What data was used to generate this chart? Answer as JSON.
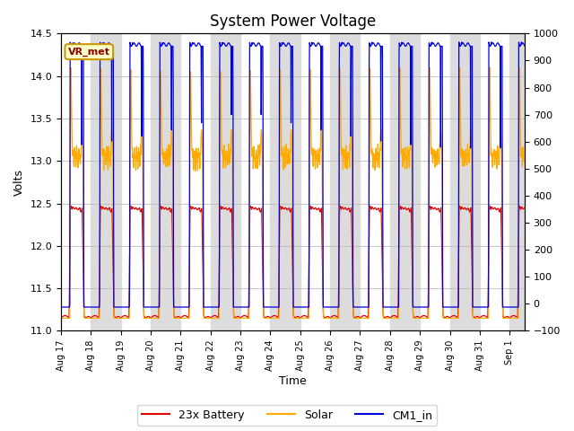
{
  "title": "System Power Voltage",
  "ylabel_left": "Volts",
  "xlabel": "Time",
  "ylim_left": [
    11.0,
    14.5
  ],
  "ylim_right": [
    -100,
    1000
  ],
  "yticks_left": [
    11.0,
    11.5,
    12.0,
    12.5,
    13.0,
    13.5,
    14.0,
    14.5
  ],
  "yticks_right": [
    -100,
    0,
    100,
    200,
    300,
    400,
    500,
    600,
    700,
    800,
    900,
    1000
  ],
  "colors": {
    "battery": "#dd0000",
    "solar": "#ffaa00",
    "cm1_in": "#0000dd"
  },
  "legend_labels": [
    "23x Battery",
    "Solar",
    "CM1_in"
  ],
  "vr_met_label": "VR_met",
  "background_color": "#ffffff",
  "grid_color": "#bbbbbb",
  "band_color": "#dcdcdc",
  "title_fontsize": 12,
  "label_fontsize": 9,
  "tick_fontsize": 8,
  "legend_fontsize": 9,
  "battery_night": 11.15,
  "battery_day_low": 11.18,
  "battery_day_peak": 12.45,
  "solar_night": 11.15,
  "solar_day_base": 13.05,
  "solar_day_peak": 14.1,
  "cm1_night": 11.28,
  "cm1_day_peak": 14.4,
  "figsize": [
    6.4,
    4.8
  ],
  "dpi": 100
}
